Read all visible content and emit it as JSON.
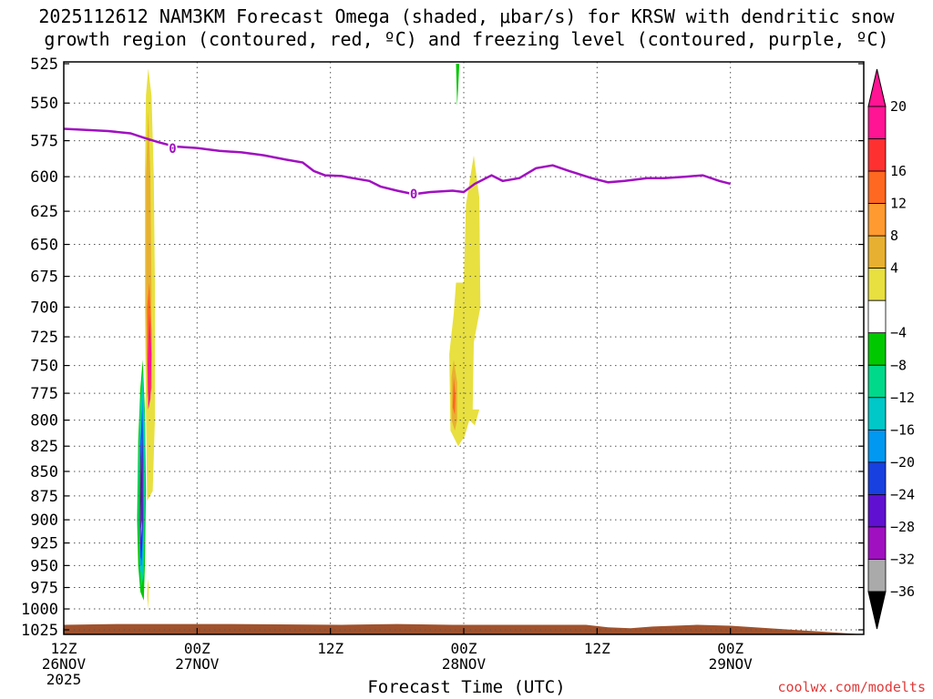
{
  "title_line1": "2025112612 NAM3KM Forecast Omega (shaded, μbar/s) for KRSW with dendritic snow",
  "title_line2": "growth region (contoured, red, ºC) and freezing level (contoured, purple, ºC)",
  "credit": "coolwx.com/modelts",
  "chart_data": {
    "type": "heatmap",
    "title": "2025112612 NAM3KM Forecast Omega (shaded, μbar/s) for KRSW with dendritic snow growth region (contoured, red, ºC) and freezing level (contoured, purple, ºC)",
    "xlabel": "Forecast Time (UTC)",
    "ylabel": "",
    "y_scale": "log",
    "y_inverted": true,
    "ylim": [
      1030,
      525
    ],
    "xlim_hours": [
      0,
      72
    ],
    "grid": true,
    "y_ticks": [
      525,
      550,
      575,
      600,
      625,
      650,
      675,
      700,
      725,
      750,
      775,
      800,
      825,
      850,
      875,
      900,
      925,
      950,
      975,
      1000,
      1025
    ],
    "x_ticks": [
      {
        "hour": 0,
        "lines": [
          "12Z",
          "26NOV",
          "2025"
        ]
      },
      {
        "hour": 12,
        "lines": [
          "00Z",
          "27NOV"
        ]
      },
      {
        "hour": 24,
        "lines": [
          "12Z"
        ]
      },
      {
        "hour": 36,
        "lines": [
          "00Z",
          "28NOV"
        ]
      },
      {
        "hour": 48,
        "lines": [
          "12Z"
        ]
      },
      {
        "hour": 60,
        "lines": [
          "00Z",
          "29NOV"
        ]
      }
    ],
    "colorbar": {
      "labels": [
        "20",
        "16",
        "12",
        "8",
        "4",
        "−4",
        "−8",
        "−12",
        "−16",
        "−20",
        "−24",
        "−28",
        "−32",
        "−36"
      ],
      "bins": [
        {
          "color": "#ff1493"
        },
        {
          "color": "#ff3030"
        },
        {
          "color": "#ff6820"
        },
        {
          "color": "#ff9a30"
        },
        {
          "color": "#e8b030"
        },
        {
          "color": "#e8e040"
        },
        {
          "color": "#ffffff"
        },
        {
          "color": "#00c800"
        },
        {
          "color": "#00d88a"
        },
        {
          "color": "#00c8c8"
        },
        {
          "color": "#0098f0"
        },
        {
          "color": "#1840e0"
        },
        {
          "color": "#6010d0"
        },
        {
          "color": "#a010c0"
        },
        {
          "color": "#aaaaaa"
        }
      ],
      "top_arrow_color": "#ff1493",
      "bottom_arrow_color": "#000000"
    },
    "freezing_level": {
      "color": "#a010c0",
      "label": "0",
      "points": [
        [
          0,
          567
        ],
        [
          4,
          568.5
        ],
        [
          6,
          570
        ],
        [
          7.2,
          573
        ],
        [
          8.5,
          576
        ],
        [
          10,
          579
        ],
        [
          12,
          580
        ],
        [
          14,
          582
        ],
        [
          16,
          583
        ],
        [
          18,
          585
        ],
        [
          20,
          588
        ],
        [
          21.5,
          590
        ],
        [
          22.5,
          596
        ],
        [
          23.5,
          599
        ],
        [
          25,
          599.5
        ],
        [
          26,
          601
        ],
        [
          27.5,
          603
        ],
        [
          28.5,
          607
        ],
        [
          30,
          610
        ],
        [
          31.5,
          612.5
        ],
        [
          33,
          611
        ],
        [
          35,
          610
        ],
        [
          36,
          611
        ],
        [
          37,
          605
        ],
        [
          38.5,
          599
        ],
        [
          39.5,
          603
        ],
        [
          41,
          601
        ],
        [
          42.5,
          594
        ],
        [
          44,
          592
        ],
        [
          45.5,
          596
        ],
        [
          47.5,
          601
        ],
        [
          49,
          604
        ],
        [
          50.5,
          603
        ],
        [
          52.5,
          601
        ],
        [
          54,
          601
        ],
        [
          56,
          600
        ],
        [
          57.5,
          599
        ],
        [
          59,
          603
        ],
        [
          60,
          605
        ]
      ],
      "label_points": [
        [
          9.8,
          581
        ],
        [
          31.5,
          613
        ]
      ]
    },
    "omega_regions": [
      {
        "color": "#e8e040",
        "points": [
          [
            7.6,
            528
          ],
          [
            7.9,
            545
          ],
          [
            8.1,
            600
          ],
          [
            8.2,
            680
          ],
          [
            8.2,
            800
          ],
          [
            8.0,
            870
          ],
          [
            7.5,
            880
          ],
          [
            7.4,
            790
          ],
          [
            7.3,
            700
          ],
          [
            7.3,
            600
          ],
          [
            7.4,
            545
          ]
        ]
      },
      {
        "color": "#e8b030",
        "points": [
          [
            7.6,
            555
          ],
          [
            7.8,
            600
          ],
          [
            7.9,
            690
          ],
          [
            7.8,
            760
          ],
          [
            7.5,
            780
          ],
          [
            7.4,
            700
          ],
          [
            7.4,
            600
          ]
        ]
      },
      {
        "color": "#ff6820",
        "points": [
          [
            7.7,
            680
          ],
          [
            7.9,
            720
          ],
          [
            7.9,
            770
          ],
          [
            7.6,
            790
          ],
          [
            7.5,
            740
          ],
          [
            7.5,
            700
          ]
        ]
      },
      {
        "color": "#ff1493",
        "points": [
          [
            7.7,
            705
          ],
          [
            7.9,
            740
          ],
          [
            7.8,
            780
          ],
          [
            7.6,
            790
          ],
          [
            7.55,
            750
          ]
        ]
      },
      {
        "color": "#e8e040",
        "points": [
          [
            7.55,
            965
          ],
          [
            7.65,
            975
          ],
          [
            7.6,
            1000
          ],
          [
            7.5,
            985
          ]
        ]
      },
      {
        "color": "#00c800",
        "points": [
          [
            7.1,
            745
          ],
          [
            7.3,
            790
          ],
          [
            7.4,
            870
          ],
          [
            7.3,
            950
          ],
          [
            7.2,
            990
          ],
          [
            6.9,
            980
          ],
          [
            6.7,
            950
          ],
          [
            6.6,
            900
          ],
          [
            6.7,
            820
          ],
          [
            6.9,
            770
          ]
        ]
      },
      {
        "color": "#00d88a",
        "points": [
          [
            7.1,
            755
          ],
          [
            7.3,
            800
          ],
          [
            7.3,
            880
          ],
          [
            7.2,
            960
          ],
          [
            6.95,
            975
          ],
          [
            6.75,
            920
          ],
          [
            6.7,
            850
          ],
          [
            6.85,
            790
          ]
        ]
      },
      {
        "color": "#00c8c8",
        "points": [
          [
            7.1,
            770
          ],
          [
            7.25,
            820
          ],
          [
            7.25,
            900
          ],
          [
            7.1,
            960
          ],
          [
            6.85,
            955
          ],
          [
            6.75,
            900
          ],
          [
            6.8,
            830
          ]
        ]
      },
      {
        "color": "#0098f0",
        "points": [
          [
            7.1,
            780
          ],
          [
            7.2,
            830
          ],
          [
            7.2,
            900
          ],
          [
            7.05,
            950
          ],
          [
            6.9,
            950
          ],
          [
            6.8,
            900
          ],
          [
            6.85,
            830
          ]
        ]
      },
      {
        "color": "#1840e0",
        "points": [
          [
            7.05,
            790
          ],
          [
            7.15,
            840
          ],
          [
            7.15,
            900
          ],
          [
            7.0,
            945
          ],
          [
            6.9,
            940
          ],
          [
            6.85,
            890
          ],
          [
            6.9,
            830
          ]
        ]
      },
      {
        "color": "#6010d0",
        "points": [
          [
            7.0,
            800
          ],
          [
            7.1,
            845
          ],
          [
            7.1,
            900
          ],
          [
            7.0,
            935
          ],
          [
            6.9,
            930
          ],
          [
            6.85,
            880
          ],
          [
            6.9,
            840
          ]
        ]
      },
      {
        "color": "#a010c0",
        "points": [
          [
            7.0,
            810
          ],
          [
            7.1,
            855
          ],
          [
            7.05,
            910
          ],
          [
            6.95,
            925
          ],
          [
            6.9,
            900
          ],
          [
            6.88,
            855
          ]
        ]
      },
      {
        "color": "#aaaaaa",
        "points": [
          [
            7.0,
            815
          ],
          [
            7.05,
            850
          ],
          [
            7.05,
            905
          ],
          [
            6.95,
            920
          ],
          [
            6.9,
            890
          ],
          [
            6.9,
            845
          ]
        ]
      },
      {
        "color": "#000000",
        "points": [
          [
            6.98,
            820
          ],
          [
            7.03,
            855
          ],
          [
            7.02,
            900
          ],
          [
            6.95,
            910
          ],
          [
            6.92,
            880
          ],
          [
            6.93,
            845
          ]
        ]
      },
      {
        "color": "#00c800",
        "points": [
          [
            35.3,
            525
          ],
          [
            35.6,
            525
          ],
          [
            35.5,
            540
          ],
          [
            35.4,
            552
          ]
        ]
      },
      {
        "color": "#e8e040",
        "points": [
          [
            36.9,
            585
          ],
          [
            37.4,
            615
          ],
          [
            37.5,
            700
          ],
          [
            36.9,
            730
          ],
          [
            36.8,
            790
          ],
          [
            37.4,
            790
          ],
          [
            37.0,
            805
          ],
          [
            36.5,
            800
          ],
          [
            36.1,
            815
          ],
          [
            35.5,
            825
          ],
          [
            34.8,
            810
          ],
          [
            34.7,
            740
          ],
          [
            35.1,
            705
          ],
          [
            35.3,
            680
          ],
          [
            36.0,
            680
          ],
          [
            36.2,
            620
          ]
        ]
      },
      {
        "color": "#e8b030",
        "points": [
          [
            35.1,
            745
          ],
          [
            35.4,
            765
          ],
          [
            35.4,
            800
          ],
          [
            35.2,
            810
          ],
          [
            34.9,
            800
          ],
          [
            34.9,
            760
          ]
        ]
      },
      {
        "color": "#ff6820",
        "points": [
          [
            35.1,
            760
          ],
          [
            35.25,
            778
          ],
          [
            35.2,
            795
          ],
          [
            35.0,
            788
          ]
        ]
      }
    ],
    "surface": {
      "color": "#a0522d",
      "points": [
        [
          0,
          1019
        ],
        [
          5,
          1018
        ],
        [
          15,
          1018
        ],
        [
          25,
          1019
        ],
        [
          30,
          1018
        ],
        [
          35,
          1019
        ],
        [
          43,
          1019
        ],
        [
          47,
          1019
        ],
        [
          49,
          1022
        ],
        [
          51,
          1023
        ],
        [
          53,
          1021
        ],
        [
          57,
          1019
        ],
        [
          60,
          1020
        ]
      ]
    }
  }
}
